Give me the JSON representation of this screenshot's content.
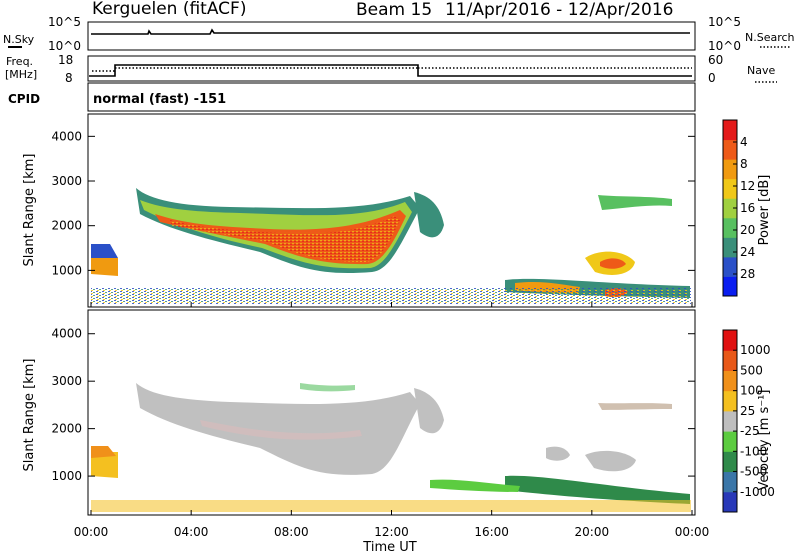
{
  "header": {
    "station": "Kerguelen (fitACF)",
    "beam": "Beam 15",
    "date_range": "11/Apr/2016 - 12/Apr/2016"
  },
  "summary_panels": {
    "nsky": {
      "label": "N.Sky",
      "ticks": [
        "10^5",
        "10^0"
      ]
    },
    "nsearch": {
      "label": "N.Search",
      "ticks": [
        "10^5",
        "10^0"
      ]
    },
    "freq": {
      "label_line1": "Freq.",
      "label_line2": "[MHz]",
      "ticks": [
        "18",
        "8"
      ]
    },
    "nave": {
      "label": "Nave",
      "ticks": [
        "60",
        "0"
      ]
    },
    "cpid": {
      "label": "CPID",
      "value": "normal (fast) -151"
    }
  },
  "time_axis": {
    "label": "Time UT",
    "ticks": [
      "00:00",
      "04:00",
      "08:00",
      "12:00",
      "16:00",
      "20:00",
      "00:00"
    ]
  },
  "chart_data": [
    {
      "type": "heatmap",
      "parameter": "power",
      "ylabel": "Slant Range [km]",
      "xlabel": "Time UT",
      "ylim": [
        180,
        4500
      ],
      "xlim_hours": [
        0,
        24
      ],
      "yticks": [
        1000,
        2000,
        3000,
        4000
      ],
      "colorbar": {
        "label": "Power [dB]",
        "ticks": [
          "4",
          "8",
          "12",
          "16",
          "20",
          "24",
          "28"
        ],
        "range": [
          0,
          30
        ],
        "colors": [
          "#0a1ef0",
          "#2a50c8",
          "#3a8f7a",
          "#58c060",
          "#a0d040",
          "#f0c818",
          "#f09a10",
          "#ee5a18",
          "#e41a1a"
        ]
      },
      "echo_regions": [
        {
          "name": "main-band",
          "t_start": 2.3,
          "t_end": 13.0,
          "range_start": 2500,
          "range_end": 1000,
          "power_db": 20
        },
        {
          "name": "early-band",
          "t_start": 0.1,
          "t_end": 1.2,
          "range_start": 1250,
          "range_end": 1000,
          "power_db": 18
        },
        {
          "name": "post-midnight-echo",
          "t_start": 13.0,
          "t_end": 14.5,
          "range_start": 2300,
          "range_end": 1500,
          "power_db": 10
        },
        {
          "name": "evening-patch",
          "t_start": 16.3,
          "t_end": 22.5,
          "range_start": 900,
          "range_end": 700,
          "power_db": 17
        },
        {
          "name": "night-patch",
          "t_start": 20.0,
          "t_end": 21.5,
          "range_start": 1300,
          "range_end": 1000,
          "power_db": 22
        },
        {
          "name": "high-range-echo",
          "t_start": 18.5,
          "t_end": 22.5,
          "range_start": 2700,
          "range_end": 2300,
          "power_db": 10
        },
        {
          "name": "ground-scatter",
          "t_start": 0.0,
          "t_end": 24.0,
          "range_start": 450,
          "range_end": 180,
          "power_db": 8
        }
      ]
    },
    {
      "type": "heatmap",
      "parameter": "velocity",
      "ylabel": "Slant Range [km]",
      "xlabel": "Time UT",
      "ylim": [
        180,
        4500
      ],
      "xlim_hours": [
        0,
        24
      ],
      "yticks": [
        1000,
        2000,
        3000,
        4000
      ],
      "colorbar": {
        "label": "Velocity [m s⁻¹]",
        "ticks": [
          "1000",
          "500",
          "100",
          "25",
          "-25",
          "-100",
          "-500",
          "-1000"
        ],
        "colors": [
          "#2838b8",
          "#3a76a8",
          "#2f8a4a",
          "#5ccc40",
          "#bebebe",
          "#f4c020",
          "#f0901a",
          "#e85818",
          "#e01010"
        ]
      },
      "echo_regions": [
        {
          "name": "main-band",
          "t_start": 2.3,
          "t_end": 13.0,
          "range_start": 2500,
          "range_end": 1000,
          "velocity": 0
        },
        {
          "name": "early-band",
          "t_start": 0.1,
          "t_end": 1.2,
          "range_start": 1250,
          "range_end": 1000,
          "velocity": -100
        },
        {
          "name": "evening-patch",
          "t_start": 16.3,
          "t_end": 22.5,
          "range_start": 900,
          "range_end": 700,
          "velocity": 300
        },
        {
          "name": "night-patch",
          "t_start": 20.0,
          "t_end": 21.5,
          "range_start": 1300,
          "range_end": 1000,
          "velocity": 0
        },
        {
          "name": "ground-scatter",
          "t_start": 0.0,
          "t_end": 24.0,
          "range_start": 450,
          "range_end": 180,
          "velocity": -50
        }
      ]
    }
  ]
}
